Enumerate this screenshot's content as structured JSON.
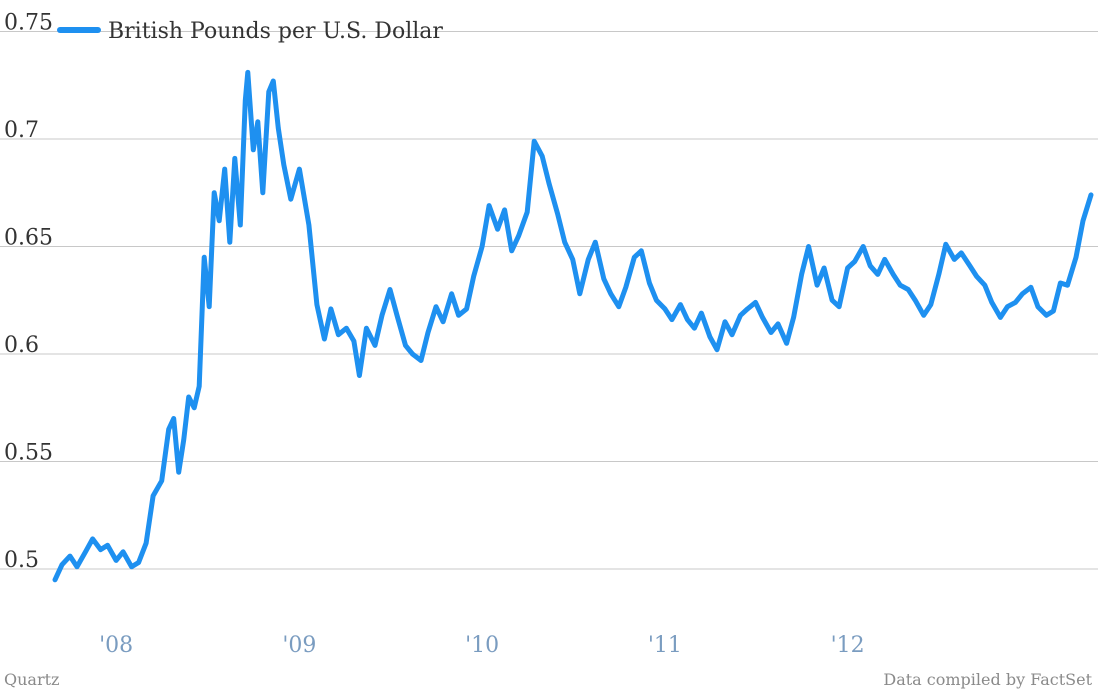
{
  "chart_data": {
    "type": "line",
    "series": [
      {
        "name": "British Pounds per U.S. Dollar",
        "color": "#1e90f0",
        "points": [
          [
            "2007-09-01",
            0.495
          ],
          [
            "2007-09-15",
            0.502
          ],
          [
            "2007-10-01",
            0.506
          ],
          [
            "2007-10-15",
            0.501
          ],
          [
            "2007-11-01",
            0.508
          ],
          [
            "2007-11-15",
            0.514
          ],
          [
            "2007-12-01",
            0.509
          ],
          [
            "2007-12-15",
            0.511
          ],
          [
            "2008-01-01",
            0.504
          ],
          [
            "2008-01-15",
            0.508
          ],
          [
            "2008-02-01",
            0.501
          ],
          [
            "2008-02-15",
            0.503
          ],
          [
            "2008-03-01",
            0.512
          ],
          [
            "2008-03-15",
            0.534
          ],
          [
            "2008-04-01",
            0.541
          ],
          [
            "2008-04-15",
            0.565
          ],
          [
            "2008-04-25",
            0.57
          ],
          [
            "2008-05-05",
            0.545
          ],
          [
            "2008-05-15",
            0.56
          ],
          [
            "2008-05-25",
            0.58
          ],
          [
            "2008-06-05",
            0.575
          ],
          [
            "2008-06-15",
            0.585
          ],
          [
            "2008-06-25",
            0.645
          ],
          [
            "2008-07-05",
            0.622
          ],
          [
            "2008-07-15",
            0.675
          ],
          [
            "2008-07-25",
            0.662
          ],
          [
            "2008-08-05",
            0.686
          ],
          [
            "2008-08-15",
            0.652
          ],
          [
            "2008-08-25",
            0.691
          ],
          [
            "2008-09-05",
            0.66
          ],
          [
            "2008-09-15",
            0.718
          ],
          [
            "2008-09-20",
            0.731
          ],
          [
            "2008-10-01",
            0.695
          ],
          [
            "2008-10-10",
            0.708
          ],
          [
            "2008-10-20",
            0.675
          ],
          [
            "2008-11-01",
            0.722
          ],
          [
            "2008-11-10",
            0.727
          ],
          [
            "2008-11-20",
            0.705
          ],
          [
            "2008-12-01",
            0.688
          ],
          [
            "2008-12-15",
            0.672
          ],
          [
            "2009-01-01",
            0.686
          ],
          [
            "2009-01-20",
            0.66
          ],
          [
            "2009-02-05",
            0.623
          ],
          [
            "2009-02-20",
            0.607
          ],
          [
            "2009-03-05",
            0.621
          ],
          [
            "2009-03-20",
            0.609
          ],
          [
            "2009-04-05",
            0.612
          ],
          [
            "2009-04-20",
            0.606
          ],
          [
            "2009-05-01",
            0.59
          ],
          [
            "2009-05-15",
            0.612
          ],
          [
            "2009-06-01",
            0.604
          ],
          [
            "2009-06-15",
            0.618
          ],
          [
            "2009-07-01",
            0.63
          ],
          [
            "2009-07-15",
            0.618
          ],
          [
            "2009-08-01",
            0.604
          ],
          [
            "2009-08-15",
            0.6
          ],
          [
            "2009-09-01",
            0.597
          ],
          [
            "2009-09-15",
            0.61
          ],
          [
            "2009-10-01",
            0.622
          ],
          [
            "2009-10-15",
            0.615
          ],
          [
            "2009-11-01",
            0.628
          ],
          [
            "2009-11-15",
            0.618
          ],
          [
            "2009-12-01",
            0.621
          ],
          [
            "2009-12-15",
            0.636
          ],
          [
            "2010-01-01",
            0.65
          ],
          [
            "2010-01-15",
            0.669
          ],
          [
            "2010-02-01",
            0.658
          ],
          [
            "2010-02-15",
            0.667
          ],
          [
            "2010-03-01",
            0.648
          ],
          [
            "2010-03-15",
            0.655
          ],
          [
            "2010-04-01",
            0.666
          ],
          [
            "2010-04-15",
            0.699
          ],
          [
            "2010-05-01",
            0.692
          ],
          [
            "2010-05-15",
            0.679
          ],
          [
            "2010-06-01",
            0.665
          ],
          [
            "2010-06-15",
            0.652
          ],
          [
            "2010-07-01",
            0.644
          ],
          [
            "2010-07-15",
            0.628
          ],
          [
            "2010-08-01",
            0.644
          ],
          [
            "2010-08-15",
            0.652
          ],
          [
            "2010-09-01",
            0.635
          ],
          [
            "2010-09-15",
            0.628
          ],
          [
            "2010-10-01",
            0.622
          ],
          [
            "2010-10-15",
            0.631
          ],
          [
            "2010-11-01",
            0.645
          ],
          [
            "2010-11-15",
            0.648
          ],
          [
            "2010-12-01",
            0.633
          ],
          [
            "2010-12-15",
            0.625
          ],
          [
            "2011-01-01",
            0.621
          ],
          [
            "2011-01-15",
            0.616
          ],
          [
            "2011-02-01",
            0.623
          ],
          [
            "2011-02-15",
            0.616
          ],
          [
            "2011-03-01",
            0.612
          ],
          [
            "2011-03-15",
            0.619
          ],
          [
            "2011-04-01",
            0.608
          ],
          [
            "2011-04-15",
            0.602
          ],
          [
            "2011-05-01",
            0.615
          ],
          [
            "2011-05-15",
            0.609
          ],
          [
            "2011-06-01",
            0.618
          ],
          [
            "2011-06-15",
            0.621
          ],
          [
            "2011-07-01",
            0.624
          ],
          [
            "2011-07-15",
            0.617
          ],
          [
            "2011-08-01",
            0.61
          ],
          [
            "2011-08-15",
            0.614
          ],
          [
            "2011-09-01",
            0.605
          ],
          [
            "2011-09-15",
            0.617
          ],
          [
            "2011-10-01",
            0.637
          ],
          [
            "2011-10-15",
            0.65
          ],
          [
            "2011-11-01",
            0.632
          ],
          [
            "2011-11-15",
            0.64
          ],
          [
            "2011-12-01",
            0.625
          ],
          [
            "2011-12-15",
            0.622
          ],
          [
            "2012-01-01",
            0.64
          ],
          [
            "2012-01-15",
            0.643
          ],
          [
            "2012-02-01",
            0.65
          ],
          [
            "2012-02-15",
            0.641
          ],
          [
            "2012-03-01",
            0.637
          ],
          [
            "2012-03-15",
            0.644
          ],
          [
            "2012-04-01",
            0.637
          ],
          [
            "2012-04-15",
            0.632
          ],
          [
            "2012-05-01",
            0.63
          ],
          [
            "2012-05-15",
            0.625
          ],
          [
            "2012-06-01",
            0.618
          ],
          [
            "2012-06-15",
            0.623
          ],
          [
            "2012-07-01",
            0.637
          ],
          [
            "2012-07-15",
            0.651
          ],
          [
            "2012-08-01",
            0.644
          ],
          [
            "2012-08-15",
            0.647
          ],
          [
            "2012-09-01",
            0.641
          ],
          [
            "2012-09-15",
            0.636
          ],
          [
            "2012-10-01",
            0.632
          ],
          [
            "2012-10-15",
            0.624
          ],
          [
            "2012-11-01",
            0.617
          ],
          [
            "2012-11-15",
            0.622
          ],
          [
            "2012-12-01",
            0.624
          ],
          [
            "2012-12-15",
            0.628
          ],
          [
            "2013-01-01",
            0.631
          ],
          [
            "2013-01-15",
            0.622
          ],
          [
            "2013-02-01",
            0.618
          ],
          [
            "2013-02-15",
            0.62
          ],
          [
            "2013-03-01",
            0.633
          ],
          [
            "2013-03-15",
            0.632
          ],
          [
            "2013-04-01",
            0.645
          ],
          [
            "2013-04-15",
            0.662
          ],
          [
            "2013-05-01",
            0.674
          ]
        ]
      }
    ],
    "xlim": [
      "2007-09-01",
      "2013-05-15"
    ],
    "ylim": [
      0.48,
      0.76
    ],
    "y_ticks": [
      {
        "value": 0.5,
        "label": "0.5"
      },
      {
        "value": 0.55,
        "label": "0.55"
      },
      {
        "value": 0.6,
        "label": "0.6"
      },
      {
        "value": 0.65,
        "label": "0.65"
      },
      {
        "value": 0.7,
        "label": "0.7"
      },
      {
        "value": 0.75,
        "label": "0.75"
      }
    ],
    "x_ticks": [
      {
        "value": "2008-01-01",
        "label": "'08"
      },
      {
        "value": "2009-01-01",
        "label": "'09"
      },
      {
        "value": "2010-01-01",
        "label": "'10"
      },
      {
        "value": "2011-01-01",
        "label": "'11"
      },
      {
        "value": "2012-01-01",
        "label": "'12"
      }
    ],
    "grid": "horizontal",
    "legend": "top-left"
  },
  "colors": {
    "line": "#1e90f0",
    "grid": "#c8c8c8",
    "axis_text": "#333333",
    "x_tick_text": "#7a9cc0",
    "footer_text": "#8a8a8a"
  },
  "footer": {
    "left": "Quartz",
    "right": "Data compiled by FactSet"
  }
}
